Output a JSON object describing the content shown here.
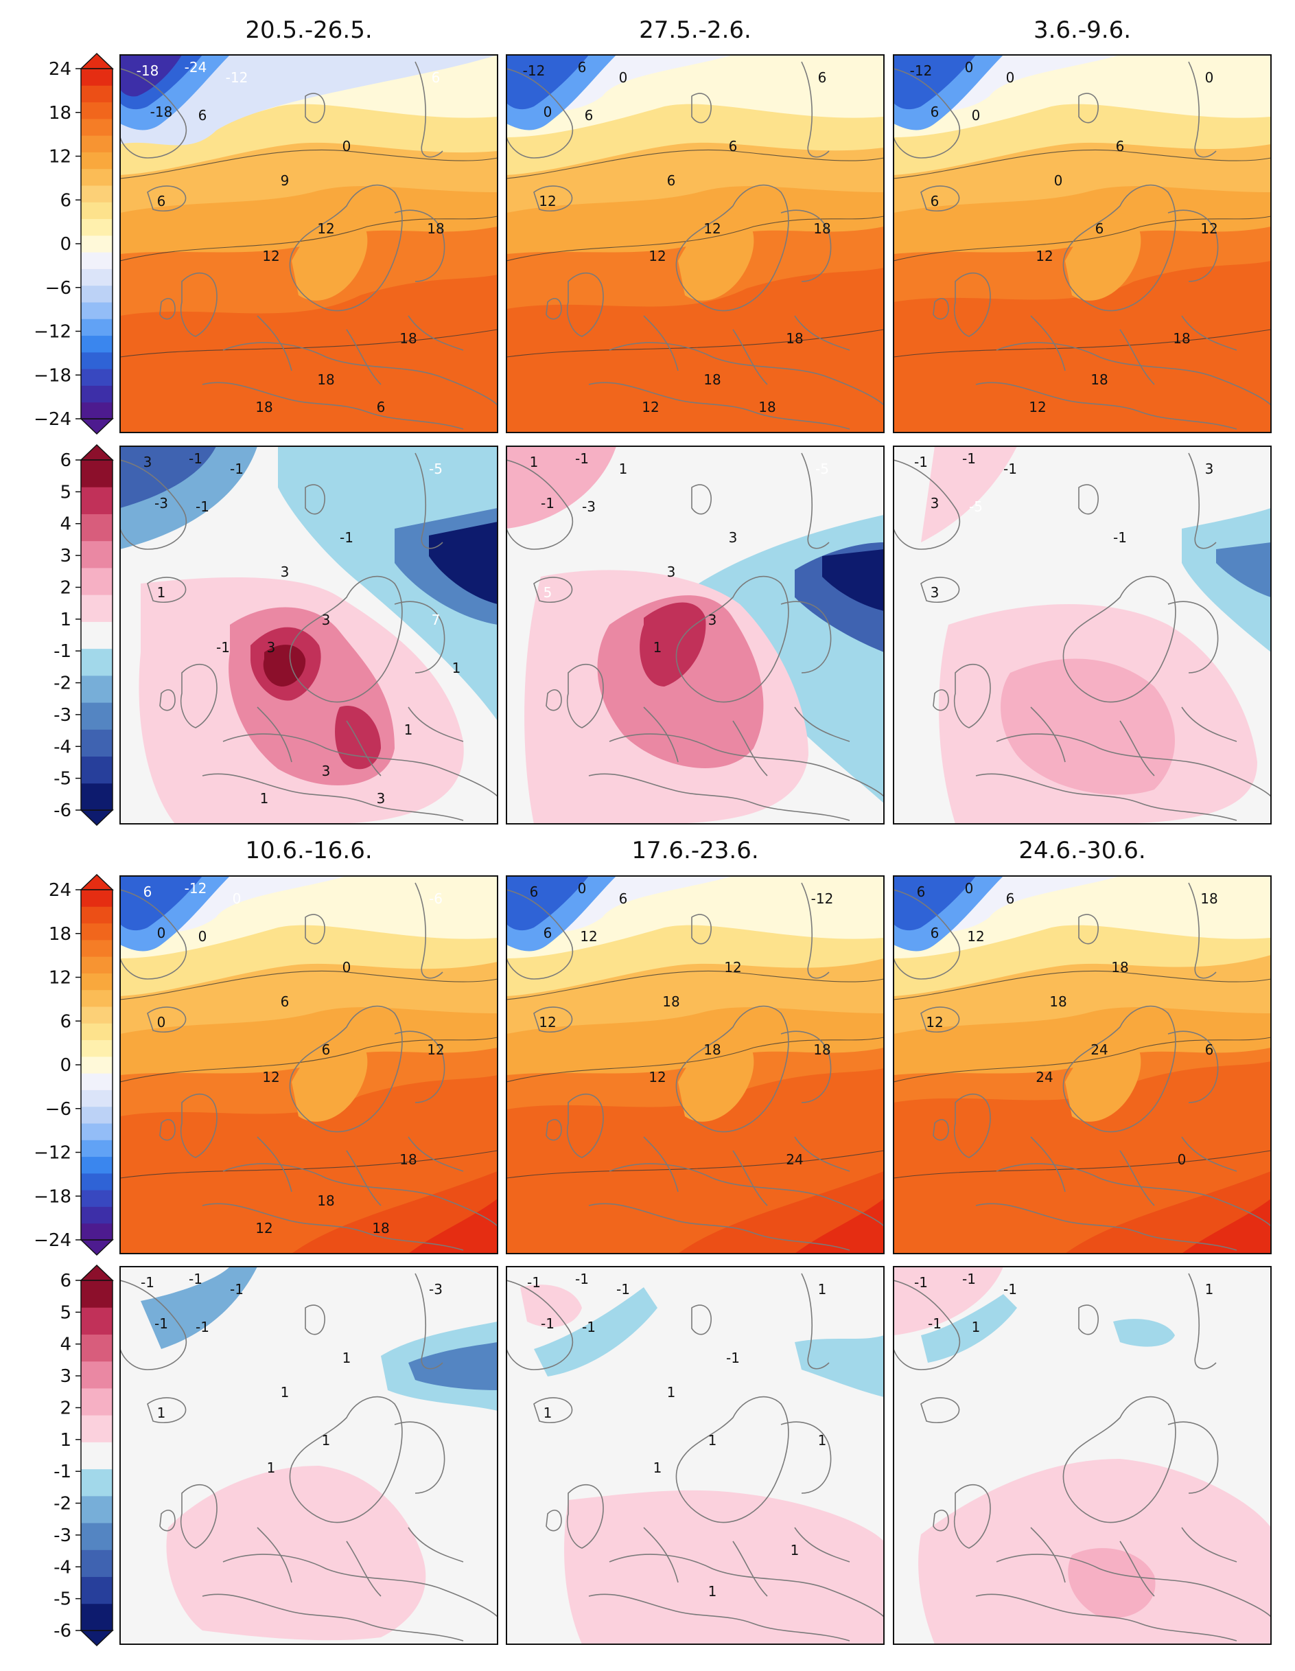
{
  "colors": {
    "temp_scale": [
      "#4d1b8f",
      "#3d2fa8",
      "#3848c0",
      "#2f63d6",
      "#3a86ee",
      "#61a2f5",
      "#93bdf7",
      "#bcd2f6",
      "#dbe4f9",
      "#f1f2fb",
      "#fff9d9",
      "#fff0ad",
      "#fde28c",
      "#fcd077",
      "#fbbc56",
      "#f9a83d",
      "#f79432",
      "#f57d26",
      "#f1661c",
      "#ec4f16",
      "#e52d12"
    ],
    "anomaly_scale": [
      "#0d1b6e",
      "#273f9b",
      "#3f63b1",
      "#5485c2",
      "#77aed8",
      "#a2d8ea",
      "#f5f5f5",
      "#fbd1dd",
      "#f6b0c4",
      "#ea88a3",
      "#d85d7c",
      "#c13159",
      "#8c0f2b"
    ]
  },
  "chart_data": [
    {
      "type": "heatmap",
      "panel": "temperature-row-1",
      "titles": [
        "20.5.-26.5.",
        "27.5.-2.6.",
        "3.6.-9.6."
      ],
      "colorbar": {
        "ticks": [
          "24",
          "18",
          "12",
          "6",
          "0",
          "−6",
          "−12",
          "−18",
          "−24"
        ],
        "range": [
          -24,
          24
        ],
        "step": 3,
        "extend": "both"
      },
      "contour_labels": [
        [
          "-18",
          "-24",
          "-12",
          "-18",
          "6",
          "6",
          "0",
          "6",
          "9",
          "12",
          "12",
          "18",
          "18",
          "18",
          "18",
          "6"
        ],
        [
          "-12",
          "6",
          "0",
          "0",
          "6",
          "6",
          "6",
          "12",
          "6",
          "12",
          "12",
          "18",
          "18",
          "18",
          "12",
          "18"
        ],
        [
          "-12",
          "0",
          "0",
          "6",
          "0",
          "0",
          "6",
          "6",
          "0",
          "6",
          "12",
          "12",
          "18",
          "18",
          "12"
        ]
      ]
    },
    {
      "type": "heatmap",
      "panel": "anomaly-row-1",
      "colorbar": {
        "ticks": [
          "6",
          "5",
          "4",
          "3",
          "2",
          "1",
          "-1",
          "-2",
          "-3",
          "-4",
          "-5",
          "-6"
        ],
        "range": [
          -6,
          6
        ],
        "step": 1,
        "extend": "both"
      },
      "contour_labels": [
        [
          "3",
          "-1",
          "-1",
          "-3",
          "-1",
          "-5",
          "-1",
          "1",
          "3",
          "3",
          "3",
          "7",
          "1",
          "3",
          "1",
          "3",
          "1",
          "-1"
        ],
        [
          "1",
          "-1",
          "1",
          "-1",
          "-3",
          "-5",
          "3",
          "5",
          "3",
          "3",
          "1"
        ],
        [
          "-1",
          "-1",
          "-1",
          "3",
          "-5",
          "3",
          "-1",
          "3"
        ]
      ]
    },
    {
      "type": "heatmap",
      "panel": "temperature-row-2",
      "titles": [
        "10.6.-16.6.",
        "17.6.-23.6.",
        "24.6.-30.6."
      ],
      "colorbar": {
        "ticks": [
          "24",
          "18",
          "12",
          "6",
          "0",
          "−6",
          "−12",
          "−18",
          "−24"
        ],
        "range": [
          -24,
          24
        ],
        "step": 3,
        "extend": "both"
      },
      "contour_labels": [
        [
          "6",
          "-12",
          "0",
          "0",
          "0",
          "-6",
          "0",
          "0",
          "6",
          "6",
          "12",
          "12",
          "18",
          "18",
          "12",
          "18"
        ],
        [
          "6",
          "0",
          "6",
          "6",
          "12",
          "-12",
          "12",
          "12",
          "18",
          "18",
          "12",
          "18",
          "24"
        ],
        [
          "6",
          "0",
          "6",
          "6",
          "12",
          "18",
          "18",
          "12",
          "18",
          "24",
          "24",
          "6",
          "0"
        ]
      ]
    },
    {
      "type": "heatmap",
      "panel": "anomaly-row-2",
      "colorbar": {
        "ticks": [
          "6",
          "5",
          "4",
          "3",
          "2",
          "1",
          "-1",
          "-2",
          "-3",
          "-4",
          "-5",
          "-6"
        ],
        "range": [
          -6,
          6
        ],
        "step": 1,
        "extend": "both"
      },
      "contour_labels": [
        [
          "-1",
          "-1",
          "-1",
          "-1",
          "-1",
          "-3",
          "1",
          "1",
          "1",
          "1",
          "1"
        ],
        [
          "-1",
          "-1",
          "-1",
          "-1",
          "-1",
          "1",
          "-1",
          "1",
          "1",
          "1",
          "1",
          "1",
          "1",
          "1"
        ],
        [
          "-1",
          "-1",
          "-1",
          "-1",
          "1",
          "1"
        ]
      ]
    }
  ]
}
